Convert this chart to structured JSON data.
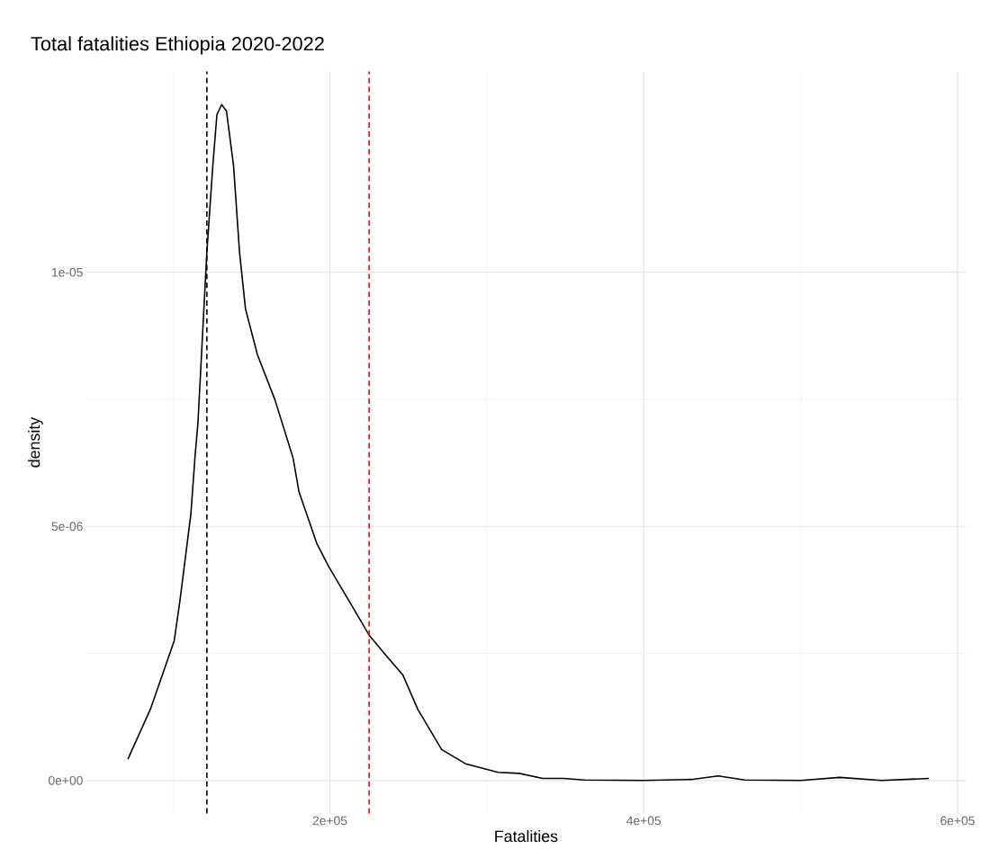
{
  "chart_data": {
    "type": "line",
    "title": "Total fatalities Ethiopia 2020-2022",
    "xlabel": "Fatalities",
    "ylabel": "density",
    "xlim": [
      44500,
      605500
    ],
    "ylim": [
      -6.5e-07,
      1.395e-05
    ],
    "xticks": [
      {
        "value": 200000,
        "label": "2e+05"
      },
      {
        "value": 400000,
        "label": "4e+05"
      },
      {
        "value": 600000,
        "label": "6e+05"
      }
    ],
    "yticks": [
      {
        "value": 0,
        "label": "0e+00"
      },
      {
        "value": 5e-06,
        "label": "5e-06"
      },
      {
        "value": 1e-05,
        "label": "1e-05"
      }
    ],
    "grid": true,
    "marker": "none",
    "line_style": "solid",
    "series": [
      {
        "color": "#000000",
        "x": [
          71250,
          85600,
          100800,
          104500,
          111400,
          114000,
          115900,
          121600,
          125400,
          128000,
          131000,
          134100,
          138600,
          142400,
          146200,
          153800,
          165100,
          176500,
          180300,
          191700,
          199200,
          214400,
          225000,
          237100,
          246600,
          256000,
          271200,
          286400,
          307200,
          320500,
          335600,
          348900,
          362200,
          400000,
          430300,
          447400,
          464400,
          500000,
          525000,
          551500,
          581800
        ],
        "values": [
          4.2e-07,
          1.4e-06,
          2.75e-06,
          3.55e-06,
          5.24e-06,
          6.35e-06,
          7.03e-06,
          1.04e-05,
          1.21e-05,
          1.31e-05,
          1.33e-05,
          1.317e-05,
          1.21e-05,
          1.04e-05,
          9.28e-06,
          8.38e-06,
          7.48e-06,
          6.35e-06,
          5.68e-06,
          4.66e-06,
          4.21e-06,
          3.42e-06,
          2.86e-06,
          2.41e-06,
          2.07e-06,
          1.4e-06,
          6.1e-07,
          3.3e-07,
          1.6e-07,
          1.4e-07,
          4e-08,
          4e-08,
          1e-08,
          0,
          2e-08,
          9e-08,
          1e-08,
          0,
          6e-08,
          0,
          4e-08
        ]
      }
    ],
    "ref_lines": [
      {
        "axis": "x",
        "value": 121600,
        "color": "#000000",
        "line_style": "dashed"
      },
      {
        "axis": "x",
        "value": 225000,
        "color": "#ff0000",
        "line_style": "dashed"
      }
    ]
  }
}
